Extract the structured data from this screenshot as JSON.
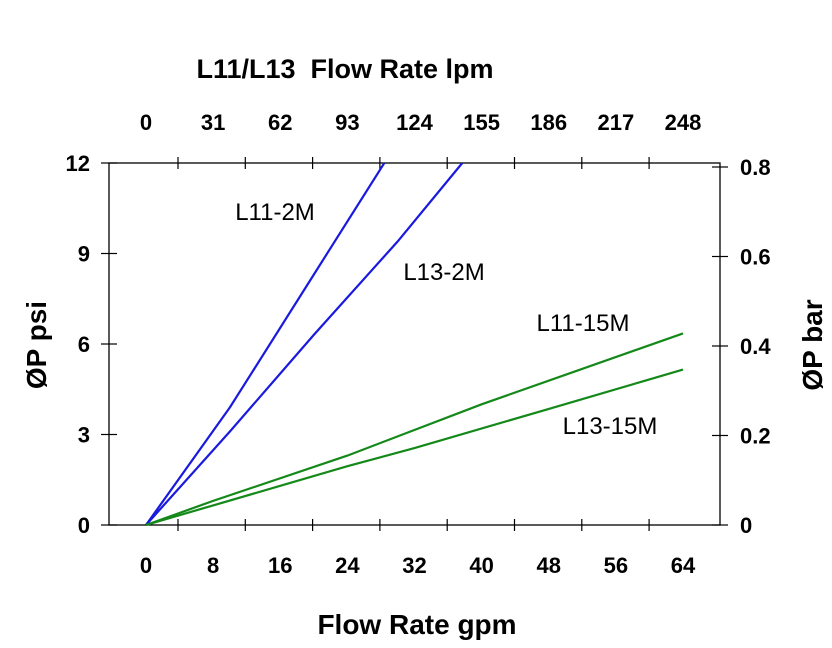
{
  "chart_data": {
    "type": "line",
    "title": "L11/L13  Flow Rate lpm",
    "xlabel": "Flow Rate gpm",
    "ylabel": "ØP psi",
    "y2label": "ØP bar",
    "xlim": [
      0,
      64
    ],
    "ylim": [
      0,
      12
    ],
    "y2lim": [
      0,
      0.8
    ],
    "x_ticks": [
      "0",
      "8",
      "16",
      "24",
      "32",
      "40",
      "48",
      "56",
      "64"
    ],
    "x2_ticks": [
      "0",
      "31",
      "62",
      "93",
      "124",
      "155",
      "186",
      "217",
      "248"
    ],
    "y_ticks": [
      "0",
      "3",
      "6",
      "9",
      "12"
    ],
    "y2_ticks": [
      "0",
      "0.2",
      "0.4",
      "0.6",
      "0.8"
    ],
    "grid": false,
    "series": [
      {
        "name": "L11-2M",
        "color": "#1a1adf",
        "x": [
          0,
          10,
          20,
          28.4
        ],
        "y": [
          0,
          3.9,
          8.3,
          12
        ]
      },
      {
        "name": "L13-2M",
        "color": "#1a1adf",
        "x": [
          0,
          10,
          20,
          30,
          37.7
        ],
        "y": [
          0,
          3.1,
          6.3,
          9.4,
          12
        ]
      },
      {
        "name": "L11-15M",
        "color": "#14891a",
        "x": [
          0,
          8,
          24,
          40,
          64
        ],
        "y": [
          0,
          0.8,
          2.3,
          4.0,
          6.35
        ]
      },
      {
        "name": "L13-15M",
        "color": "#14891a",
        "x": [
          0,
          8,
          24,
          32,
          48,
          64
        ],
        "y": [
          0,
          0.65,
          1.95,
          2.55,
          3.85,
          5.15
        ]
      }
    ]
  }
}
